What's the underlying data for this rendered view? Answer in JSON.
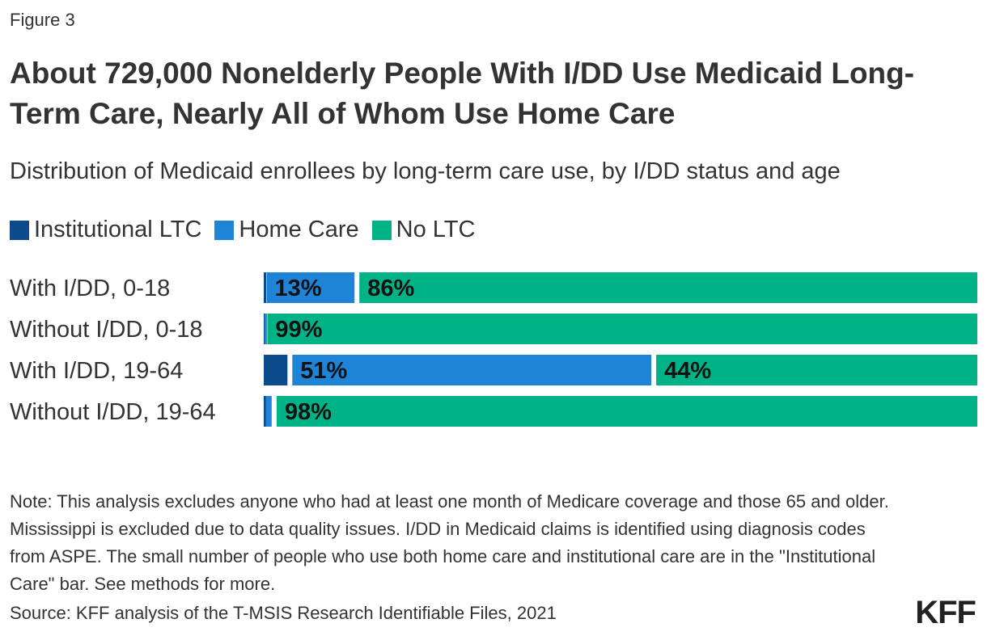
{
  "figure_label": "Figure 3",
  "title": "About 729,000 Nonelderly People With I/DD Use Medicaid Long-Term Care, Nearly All of Whom Use Home Care",
  "subtitle": "Distribution of Medicaid enrollees by long-term care use, by I/DD status and age",
  "legend": [
    {
      "label": "Institutional LTC",
      "color": "#0b4a8b"
    },
    {
      "label": "Home Care",
      "color": "#1f83d6"
    },
    {
      "label": "No LTC",
      "color": "#00b386"
    }
  ],
  "note": "Note: This analysis excludes anyone who had at least one month of Medicare coverage and those 65 and older. Mississippi is excluded due to data quality issues. I/DD in Medicaid claims is identified using diagnosis codes from ASPE. The small number of people who use both home care and institutional care are in the \"Institutional Care\" bar. See methods for more.",
  "source": "Source: KFF analysis of the T-MSIS Research Identifiable Files, 2021",
  "logo": "KFF",
  "chart_data": {
    "type": "bar",
    "orientation": "horizontal",
    "stacked": true,
    "categories": [
      "With I/DD, 0-18",
      "Without I/DD, 0-18",
      "With I/DD, 19-64",
      "Without I/DD, 19-64"
    ],
    "series": [
      {
        "name": "Institutional LTC",
        "color": "#0b4a8b",
        "values": [
          0.4,
          0.1,
          4,
          0.3
        ],
        "labels": [
          "",
          "",
          "",
          ""
        ]
      },
      {
        "name": "Home Care",
        "color": "#1f83d6",
        "values": [
          13,
          0.4,
          51,
          1.5
        ],
        "labels": [
          "13%",
          "",
          "51%",
          ""
        ]
      },
      {
        "name": "No LTC",
        "color": "#00b386",
        "values": [
          86,
          99,
          44,
          98
        ],
        "labels": [
          "86%",
          "99%",
          "44%",
          "98%"
        ]
      }
    ],
    "xlim": [
      0,
      100
    ],
    "grid": false,
    "legend_position": "top-left"
  }
}
